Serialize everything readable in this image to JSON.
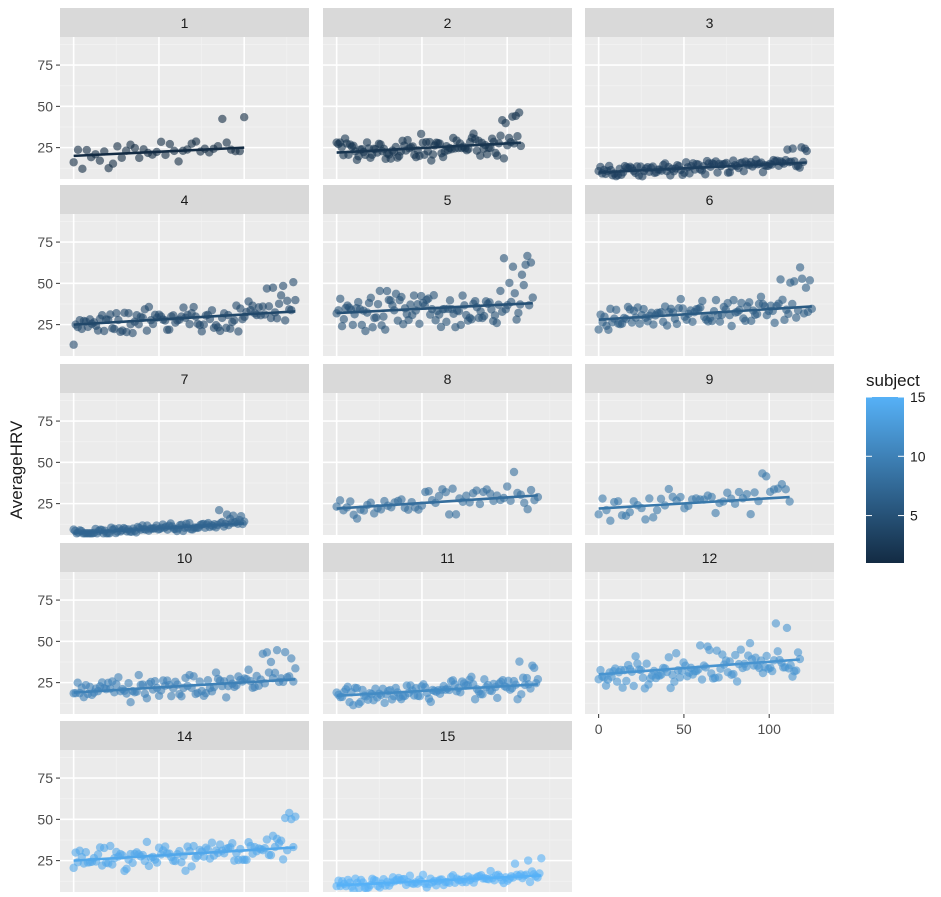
{
  "chart_data": {
    "type": "scatter",
    "facet_by": "subject",
    "layout": {
      "columns": 3,
      "rows": 5
    },
    "ylabel": "AverageHRV",
    "xlabel": "",
    "xlim": [
      -8,
      138
    ],
    "ylim": [
      6,
      92
    ],
    "x_ticks": [
      0,
      50,
      100
    ],
    "y_ticks": [
      25,
      50,
      75
    ],
    "y_tick_labels": [
      "25",
      "50",
      "75"
    ],
    "x_tick_labels": [
      "0",
      "50",
      "100"
    ],
    "grid": true,
    "legend": {
      "title": "subject",
      "position": "right",
      "type": "colorbar",
      "range": [
        1,
        15
      ],
      "ticks": [
        5,
        10,
        15
      ],
      "tick_labels": [
        "5",
        "10",
        "15"
      ],
      "low_color": "#132b43",
      "high_color": "#56b1f7"
    },
    "colors": {
      "panel_background": "#ebebeb",
      "strip_background": "#d9d9d9",
      "grid_major": "#ffffff",
      "grid_minor": "#f2f2f2"
    },
    "facets": [
      {
        "label": "1",
        "subject": 1,
        "n": 40,
        "x_max": 100,
        "trend": [
          [
            0,
            20
          ],
          [
            100,
            25
          ]
        ]
      },
      {
        "label": "2",
        "subject": 2,
        "n": 110,
        "x_max": 108,
        "trend": [
          [
            0,
            22
          ],
          [
            108,
            28
          ]
        ]
      },
      {
        "label": "3",
        "subject": 3,
        "n": 120,
        "x_max": 122,
        "trend": [
          [
            0,
            10
          ],
          [
            122,
            16
          ]
        ]
      },
      {
        "label": "4",
        "subject": 4,
        "n": 110,
        "x_max": 130,
        "trend": [
          [
            0,
            25
          ],
          [
            130,
            33
          ]
        ]
      },
      {
        "label": "5",
        "subject": 5,
        "n": 110,
        "x_max": 115,
        "trend": [
          [
            0,
            32
          ],
          [
            115,
            38
          ]
        ]
      },
      {
        "label": "6",
        "subject": 6,
        "n": 110,
        "x_max": 125,
        "trend": [
          [
            0,
            28
          ],
          [
            125,
            36
          ]
        ]
      },
      {
        "label": "7",
        "subject": 7,
        "n": 110,
        "x_max": 100,
        "trend": [
          [
            0,
            7
          ],
          [
            100,
            13
          ]
        ]
      },
      {
        "label": "8",
        "subject": 8,
        "n": 60,
        "x_max": 118,
        "trend": [
          [
            0,
            22
          ],
          [
            118,
            30
          ]
        ]
      },
      {
        "label": "9",
        "subject": 9,
        "n": 50,
        "x_max": 112,
        "trend": [
          [
            0,
            22
          ],
          [
            112,
            29
          ]
        ]
      },
      {
        "label": "10",
        "subject": 10,
        "n": 110,
        "x_max": 130,
        "trend": [
          [
            0,
            19
          ],
          [
            130,
            27
          ]
        ]
      },
      {
        "label": "11",
        "subject": 11,
        "n": 110,
        "x_max": 118,
        "trend": [
          [
            0,
            17
          ],
          [
            118,
            24
          ]
        ]
      },
      {
        "label": "12",
        "subject": 12,
        "n": 110,
        "x_max": 118,
        "trend": [
          [
            0,
            30
          ],
          [
            118,
            39
          ]
        ]
      },
      {
        "label": "14",
        "subject": 14,
        "n": 110,
        "x_max": 130,
        "trend": [
          [
            0,
            25
          ],
          [
            130,
            33
          ]
        ]
      },
      {
        "label": "15",
        "subject": 15,
        "n": 110,
        "x_max": 120,
        "trend": [
          [
            0,
            10
          ],
          [
            120,
            16
          ]
        ]
      }
    ]
  }
}
